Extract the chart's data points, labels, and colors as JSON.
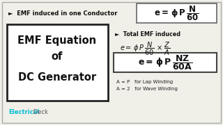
{
  "bg_color": "#f0efe8",
  "border_color": "#aaaaaa",
  "title_text_line1": "EMF Equation",
  "title_text_line2": "of",
  "title_text_line3": "DC Generator",
  "title_box_color": "#ffffff",
  "title_box_border": "#222222",
  "label1": "►  EMF induced in one Conductor",
  "label2": "►  Total EMF induced",
  "note1": "A = P   for Lap Winding",
  "note2": "A = 2   for Wave Winding",
  "brand1": "Electrical",
  "brand2": " Deck",
  "brand1_color": "#00bcd4",
  "brand2_color": "#555555"
}
